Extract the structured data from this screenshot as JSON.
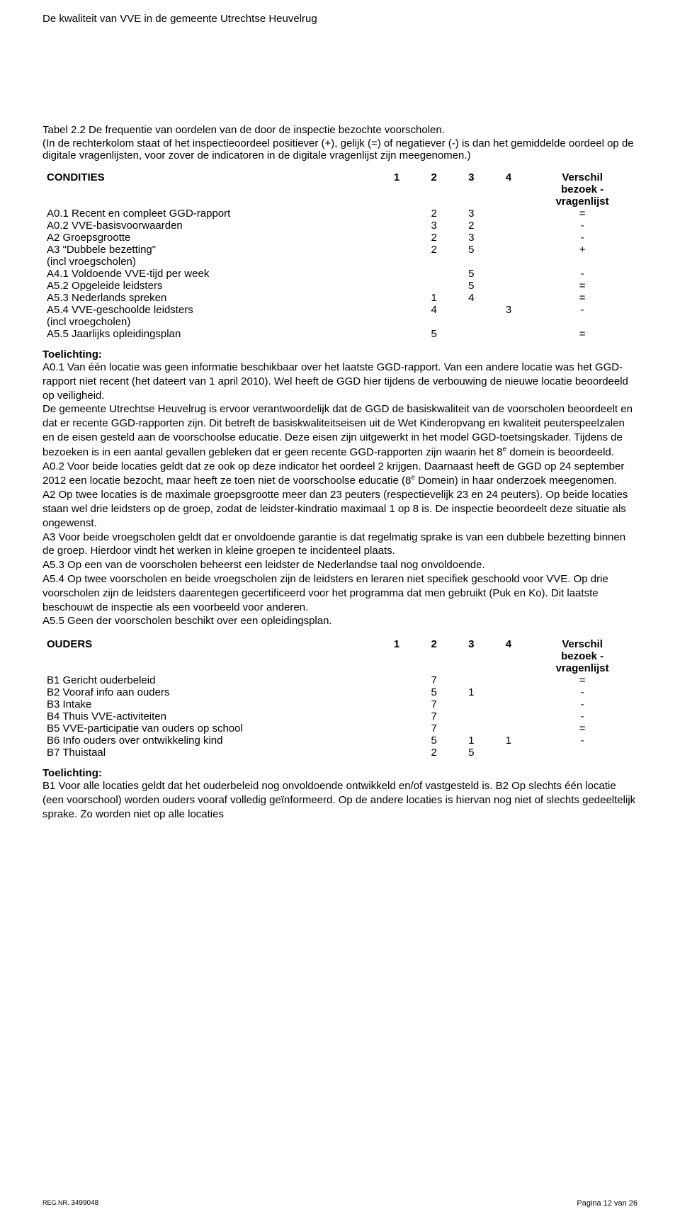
{
  "header": {
    "title": "De kwaliteit van VVE in de gemeente Utrechtse Heuvelrug"
  },
  "table_caption": "Tabel 2.2 De frequentie van oordelen van de door de inspectie bezochte voorscholen.",
  "table_paren": "(In de rechterkolom staat of het inspectieoordeel positiever (+), gelijk (=) of negatiever (-) is dan het gemiddelde oordeel op de digitale vragenlijsten, voor zover de indicatoren in de digitale vragenlijst zijn meegenomen.)",
  "table1": {
    "heading": "CONDITIES",
    "col1": "1",
    "col2": "2",
    "col3": "3",
    "col4": "4",
    "col5a": "Verschil",
    "col5b": "bezoek -",
    "col5c": "vragenlijst",
    "rows": [
      {
        "label": "A0.1 Recent en compleet GGD-rapport",
        "c1": "",
        "c2": "2",
        "c3": "3",
        "c4": "",
        "v": "="
      },
      {
        "label": "A0.2 VVE-basisvoorwaarden",
        "c1": "",
        "c2": "3",
        "c3": "2",
        "c4": "",
        "v": "-"
      },
      {
        "label": "A2 Groepsgrootte",
        "c1": "",
        "c2": "2",
        "c3": "3",
        "c4": "",
        "v": "-"
      },
      {
        "label": "A3 \"Dubbele bezetting\"\n      (incl vroegscholen)",
        "c1": "",
        "c2": "2",
        "c3": "5",
        "c4": "",
        "v": "+"
      },
      {
        "label": "A4.1 Voldoende VVE-tijd per week",
        "c1": "",
        "c2": "",
        "c3": "5",
        "c4": "",
        "v": "-"
      },
      {
        "label": "A5.2 Opgeleide leidsters",
        "c1": "",
        "c2": "",
        "c3": "5",
        "c4": "",
        "v": "="
      },
      {
        "label": "A5.3 Nederlands spreken",
        "c1": "",
        "c2": "1",
        "c3": "4",
        "c4": "",
        "v": "="
      },
      {
        "label": "A5.4 VVE-geschoolde leidsters\n      (incl vroegcholen)",
        "c1": "",
        "c2": "4",
        "c3": "",
        "c4": "3",
        "v": "-"
      },
      {
        "label": "A5.5 Jaarlijks opleidingsplan",
        "c1": "",
        "c2": "5",
        "c3": "",
        "c4": "",
        "v": "="
      }
    ]
  },
  "toelichting1": {
    "heading": "Toelichting:",
    "html": "A0.1 Van één locatie was geen informatie beschikbaar over het laatste GGD-rapport. Van een andere locatie was het GGD-rapport niet recent (het dateert van 1 april 2010). Wel heeft de GGD hier tijdens de verbouwing de nieuwe locatie beoordeeld op veiligheid.<br>De gemeente Utrechtse Heuvelrug is ervoor verantwoordelijk dat de GGD de basiskwaliteit van de voorscholen beoordeelt en dat er recente GGD-rapporten zijn. Dit betreft de basiskwaliteitseisen uit de Wet Kinderopvang en kwaliteit peuterspeelzalen en de eisen gesteld aan de voorschoolse educatie. Deze eisen zijn uitgewerkt in het model GGD-toetsingskader. Tijdens de bezoeken is in een aantal gevallen gebleken dat er geen recente GGD-rapporten zijn waarin het 8<sup>e</sup> domein is beoordeeld.<br>A0.2 Voor beide locaties geldt dat ze ook op deze indicator het oordeel 2 krijgen. Daarnaast heeft de GGD op 24 september 2012 een locatie bezocht, maar heeft ze toen niet de voorschoolse educatie (8<sup>e</sup> Domein) in haar onderzoek meegenomen.<br>A2 Op twee locaties is de maximale groepsgrootte meer dan 23 peuters (respectievelijk 23 en 24 peuters). Op beide locaties staan wel drie leidsters op de groep, zodat de leidster-kindratio maximaal 1 op 8 is. De inspectie beoordeelt deze situatie als ongewenst.<br>A3 Voor beide vroegscholen geldt dat er onvoldoende garantie is dat regelmatig sprake is van een dubbele bezetting binnen de groep. Hierdoor vindt het werken in kleine groepen te incidenteel plaats.<br>A5.3 Op een van de voorscholen beheerst een leidster de Nederlandse taal nog onvoldoende.<br>A5.4 Op twee voorscholen en beide vroegscholen zijn de leidsters en leraren niet specifiek geschoold voor VVE. Op drie voorscholen zijn de leidsters daarentegen gecertificeerd voor het programma dat men gebruikt (Puk en Ko). Dit laatste beschouwt de inspectie als een voorbeeld voor anderen.<br>A5.5 Geen der voorscholen beschikt over een opleidingsplan."
  },
  "table2": {
    "heading": "OUDERS",
    "col1": "1",
    "col2": "2",
    "col3": "3",
    "col4": "4",
    "col5a": "Verschil",
    "col5b": "bezoek -",
    "col5c": "vragenlijst",
    "rows": [
      {
        "label": "B1 Gericht ouderbeleid",
        "c1": "",
        "c2": "7",
        "c3": "",
        "c4": "",
        "v": "="
      },
      {
        "label": "B2 Vooraf info aan ouders",
        "c1": "",
        "c2": "5",
        "c3": "1",
        "c4": "",
        "v": "-"
      },
      {
        "label": "B3 Intake",
        "c1": "",
        "c2": "7",
        "c3": "",
        "c4": "",
        "v": "-"
      },
      {
        "label": "B4 Thuis VVE-activiteiten",
        "c1": "",
        "c2": "7",
        "c3": "",
        "c4": "",
        "v": "-"
      },
      {
        "label": "B5 VVE-participatie van ouders op school",
        "c1": "",
        "c2": "7",
        "c3": "",
        "c4": "",
        "v": "="
      },
      {
        "label": "B6 Info ouders over ontwikkeling kind",
        "c1": "",
        "c2": "5",
        "c3": "1",
        "c4": "1",
        "v": "-"
      },
      {
        "label": "B7 Thuistaal",
        "c1": "",
        "c2": "2",
        "c3": "5",
        "c4": "",
        "v": ""
      }
    ]
  },
  "toelichting2": {
    "heading": "Toelichting:",
    "text": "B1 Voor alle locaties geldt dat het ouderbeleid nog onvoldoende ontwikkeld en/of vastgesteld is. B2 Op slechts één locatie (een voorschool) worden ouders vooraf volledig geïnformeerd. Op de andere locaties is hiervan nog niet of slechts gedeeltelijk sprake. Zo worden niet op alle locaties"
  },
  "footer": {
    "left_prefix": "REG.NR.",
    "left_num": " 3499048",
    "right": "Pagina 12 van 26"
  }
}
